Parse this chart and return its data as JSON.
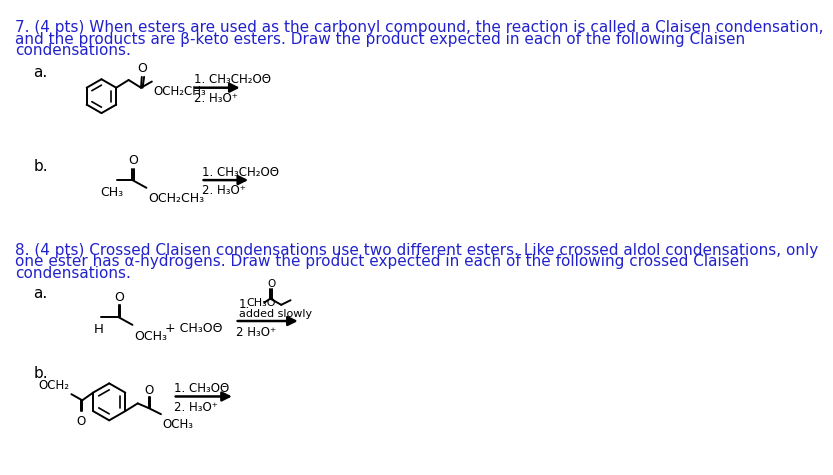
{
  "bg_color": "#ffffff",
  "text_color": "#2222cc",
  "struct_color": "#000000",
  "title1": "7. (4 pts) When esters are used as the carbonyl compound, the reaction is called a Claisen condensation,",
  "title1b": "and the products are β-keto esters. Draw the product expected in each of the following Claisen",
  "title1c": "condensations.",
  "title2": "8. (4 pts) Crossed Claisen condensations use two different esters. Like crossed aldol condensations, only",
  "title2b": "one ester has α-hydrogens. Draw the product expected in each of the following crossed Claisen",
  "title2c": "condensations.",
  "rxn1a_line1": "1. CH₃CH₂OΘ",
  "rxn1a_line2": "2. H₃O⁺",
  "rxn1b_line1": "1. CH₃CH₂OΘ",
  "rxn1b_line2": "2. H₃O⁺",
  "rxn2b_line1": "1. CH₃OΘ",
  "rxn2b_line2": "2. H₃O⁺"
}
